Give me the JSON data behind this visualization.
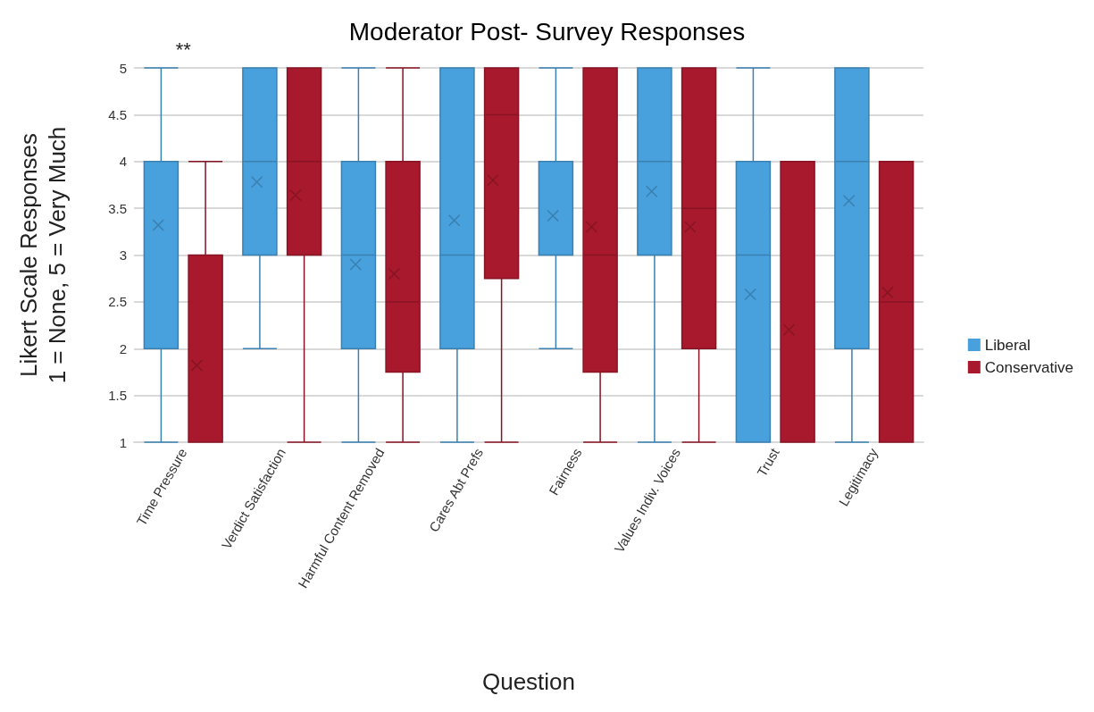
{
  "chart_data": {
    "type": "box",
    "title": "Moderator Post- Survey Responses",
    "xlabel": "Question",
    "ylabel": "Likert Scale Responses\n1 = None, 5 = Very Much",
    "categories": [
      "Time Pressure",
      "Verdict Satisfaction",
      "Harmful Content Removed",
      "Cares Abt Prefs",
      "Fairness",
      "Values Indiv. Voices",
      "Trust",
      "Legitimacy"
    ],
    "series": [
      {
        "name": "Liberal",
        "color": "#48a0dc",
        "boxes": [
          {
            "low": 1,
            "q1": 2,
            "median": 4,
            "q3": 4,
            "high": 5,
            "mean": 3.32
          },
          {
            "low": 2,
            "q1": 3,
            "median": 4,
            "q3": 5,
            "high": 5,
            "mean": 3.78
          },
          {
            "low": 1,
            "q1": 2,
            "median": 3,
            "q3": 4,
            "high": 5,
            "mean": 2.9
          },
          {
            "low": 1,
            "q1": 2,
            "median": 3,
            "q3": 5,
            "high": 5,
            "mean": 3.37
          },
          {
            "low": 2,
            "q1": 3,
            "median": 3,
            "q3": 4,
            "high": 5,
            "mean": 3.42
          },
          {
            "low": 1,
            "q1": 3,
            "median": 4,
            "q3": 5,
            "high": 5,
            "mean": 3.68
          },
          {
            "low": 1,
            "q1": 1,
            "median": 3,
            "q3": 4,
            "high": 5,
            "mean": 2.58
          },
          {
            "low": 1,
            "q1": 2,
            "median": 4,
            "q3": 5,
            "high": 5,
            "mean": 3.58
          }
        ]
      },
      {
        "name": "Conservative",
        "color": "#a8192d",
        "boxes": [
          {
            "low": 1,
            "q1": 1,
            "median": 1,
            "q3": 3,
            "high": 4,
            "mean": 1.82
          },
          {
            "low": 1,
            "q1": 3,
            "median": 4,
            "q3": 5,
            "high": 5,
            "mean": 3.64
          },
          {
            "low": 1,
            "q1": 1.75,
            "median": 2.5,
            "q3": 4,
            "high": 5,
            "mean": 2.8
          },
          {
            "low": 1,
            "q1": 2.75,
            "median": 4.5,
            "q3": 5,
            "high": 5,
            "mean": 3.8
          },
          {
            "low": 1,
            "q1": 1.75,
            "median": 3,
            "q3": 5,
            "high": 5,
            "mean": 3.3
          },
          {
            "low": 1,
            "q1": 2,
            "median": 3.5,
            "q3": 5,
            "high": 5,
            "mean": 3.3
          },
          {
            "low": 1,
            "q1": 1,
            "median": 1,
            "q3": 4,
            "high": 4,
            "mean": 2.2
          },
          {
            "low": 1,
            "q1": 1,
            "median": 2.5,
            "q3": 4,
            "high": 4,
            "mean": 2.6
          }
        ]
      }
    ],
    "ylim": [
      1,
      5
    ],
    "yticks": [
      1,
      1.5,
      2,
      2.5,
      3,
      3.5,
      4,
      4.5,
      5
    ],
    "grid": "y",
    "legend": "right",
    "marker": "cross",
    "annotations": [
      "**"
    ]
  }
}
